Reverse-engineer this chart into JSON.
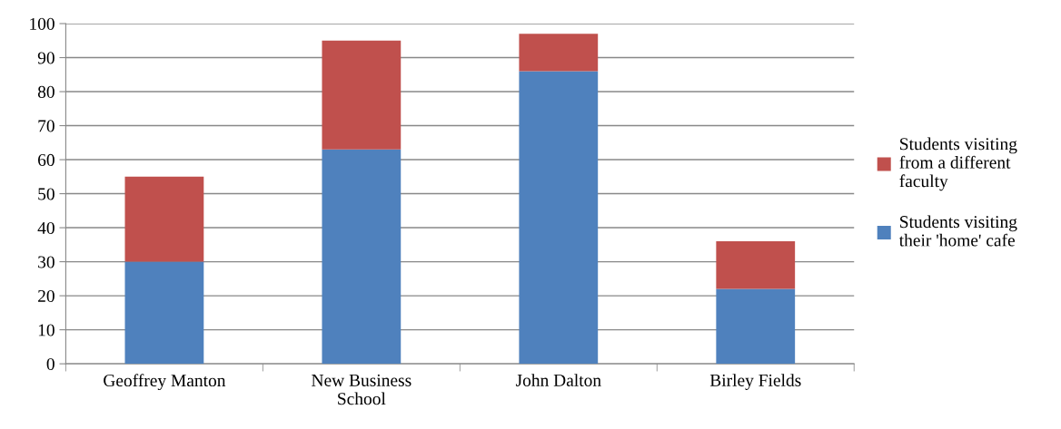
{
  "chart_data": {
    "type": "bar",
    "stacked": true,
    "categories": [
      "Geoffrey Manton",
      "New Business\nSchool",
      "John Dalton",
      "Birley Fields"
    ],
    "series": [
      {
        "name": "Students visiting\ntheir 'home' cafe",
        "color": "#4f81bd",
        "values": [
          30,
          63,
          86,
          22
        ]
      },
      {
        "name": "Students visiting\nfrom a different\nfaculty",
        "color": "#c0504d",
        "values": [
          25,
          32,
          11,
          14
        ]
      }
    ],
    "ylim": [
      0,
      100
    ],
    "yticks": [
      0,
      10,
      20,
      30,
      40,
      50,
      60,
      70,
      80,
      90,
      100
    ],
    "grid": "y",
    "legend": "right"
  }
}
